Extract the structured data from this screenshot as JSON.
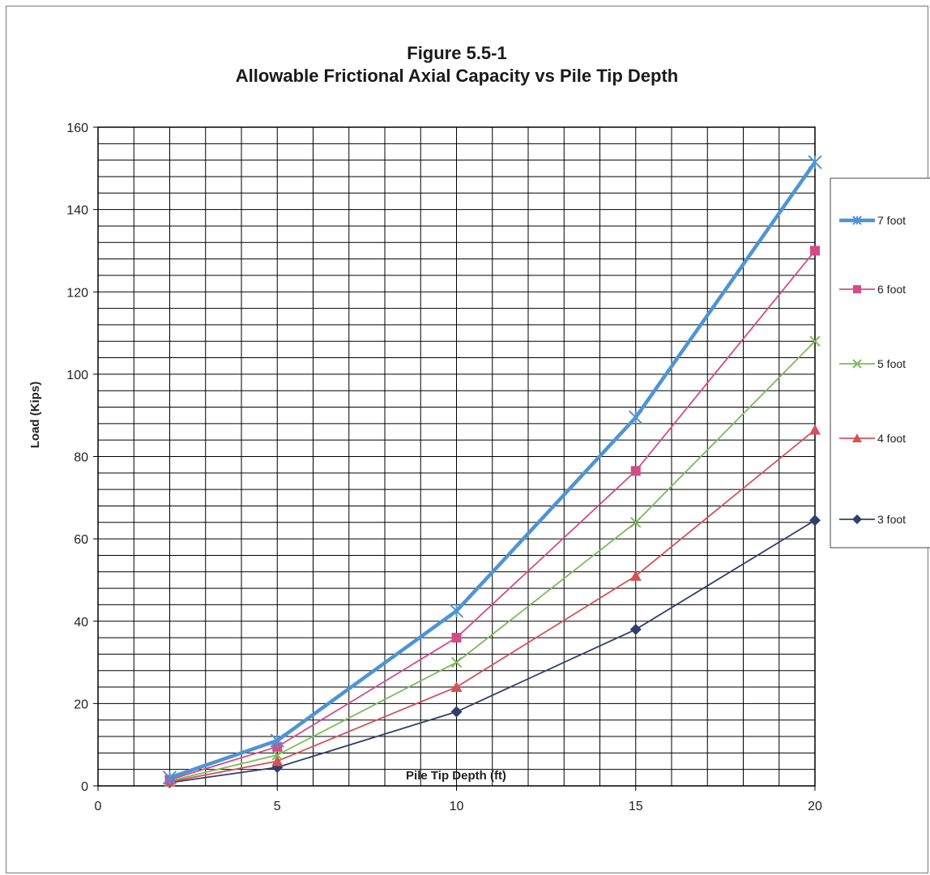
{
  "chart_data": {
    "type": "line",
    "title": "Figure 5.5-1",
    "subtitle": "Allowable Frictional Axial Capacity vs Pile Tip Depth",
    "xlabel": "Pile Tip Depth (ft)",
    "ylabel": "Load (Kips)",
    "xlim": [
      0,
      20
    ],
    "ylim": [
      0,
      160
    ],
    "x_ticks": [
      0,
      5,
      10,
      15,
      20
    ],
    "y_ticks": [
      0,
      20,
      40,
      60,
      80,
      100,
      120,
      140,
      160
    ],
    "grid": true,
    "legend_position": "right",
    "x": [
      2,
      5,
      10,
      15,
      20
    ],
    "series": [
      {
        "name": "7 foot",
        "color": "#4f94d4",
        "marker": "star",
        "values": [
          2,
          11,
          42.5,
          89.5,
          151.5
        ]
      },
      {
        "name": "6 foot",
        "color": "#d44b8a",
        "marker": "square",
        "values": [
          1.5,
          9.5,
          36,
          76.5,
          130
        ]
      },
      {
        "name": "5 foot",
        "color": "#7bbb5a",
        "marker": "x",
        "values": [
          1.2,
          7.5,
          30,
          64,
          108
        ]
      },
      {
        "name": "4 foot",
        "color": "#d4525a",
        "marker": "triangle",
        "values": [
          1,
          6,
          24,
          51,
          86.5
        ]
      },
      {
        "name": "3 foot",
        "color": "#2f3f6e",
        "marker": "diamond",
        "values": [
          0.8,
          4.5,
          18,
          38,
          64.5
        ]
      }
    ]
  }
}
